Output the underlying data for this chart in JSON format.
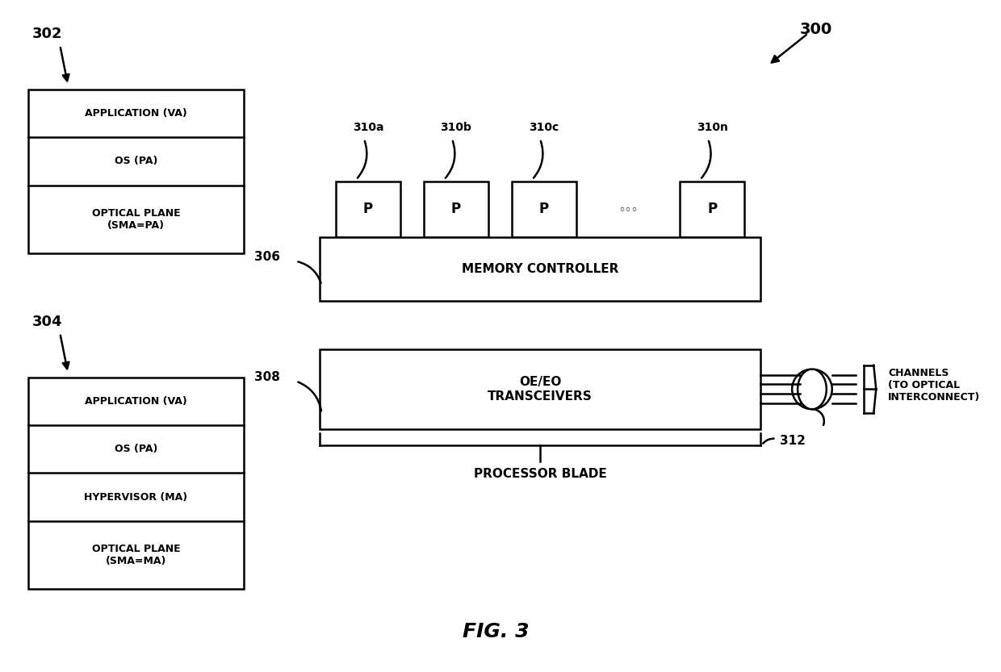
{
  "bg_color": "#ffffff",
  "fig_caption": "FIG. 3",
  "box302_label": "302",
  "box302_layers": [
    "APPLICATION (VA)",
    "OS (PA)",
    "OPTICAL PLANE\n(SMA=PA)"
  ],
  "box304_label": "304",
  "box304_layers": [
    "APPLICATION (VA)",
    "OS (PA)",
    "HYPERVISOR (MA)",
    "OPTICAL PLANE\n(SMA=MA)"
  ],
  "label_300": "300",
  "label_306": "306",
  "label_308": "308",
  "label_312": "312",
  "proc_labels": [
    "310a",
    "310b",
    "310c",
    "310n"
  ],
  "memory_controller_text": "MEMORY CONTROLLER",
  "oeo_text": "OE/EO\nTRANSCEIVERS",
  "processor_blade_text": "PROCESSOR BLADE",
  "channels_text": "CHANNELS\n(TO OPTICAL\nINTERCONNECT)"
}
